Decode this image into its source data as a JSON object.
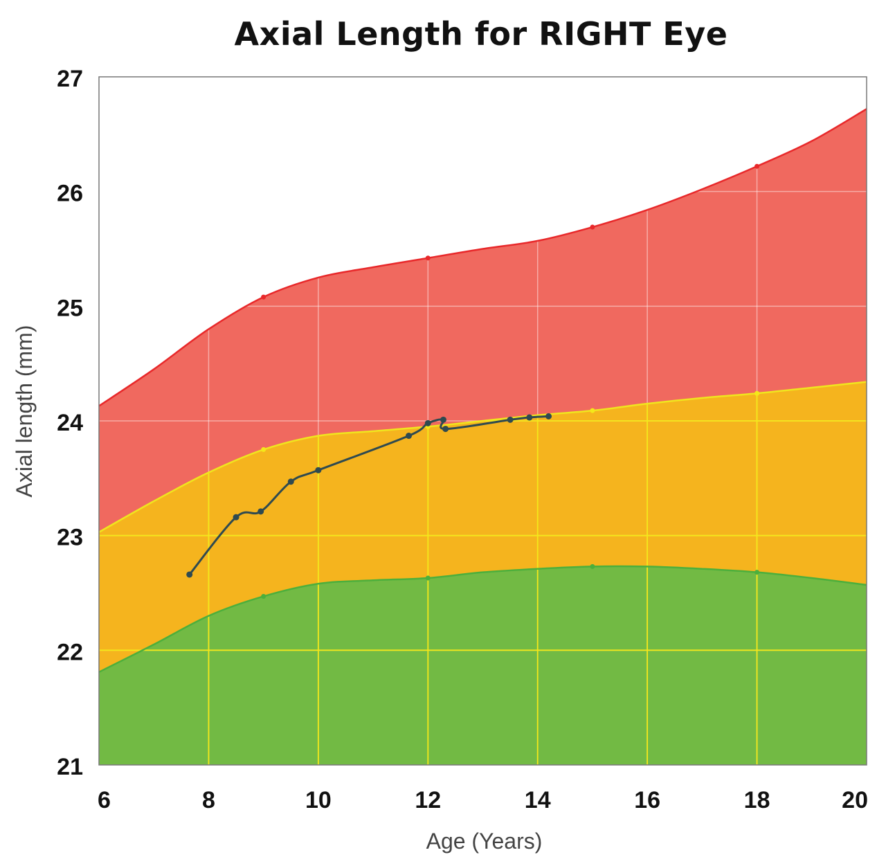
{
  "chart_data": {
    "type": "area",
    "title": "Axial Length for RIGHT Eye",
    "xlabel": "Age (Years)",
    "ylabel": "Axial length (mm)",
    "xlim": [
      6,
      20
    ],
    "ylim": [
      21,
      27
    ],
    "x_ticks": [
      6,
      8,
      10,
      12,
      14,
      16,
      18,
      20
    ],
    "y_ticks": [
      21,
      22,
      23,
      24,
      25,
      26,
      27
    ],
    "grid": true,
    "bands": [
      {
        "color": "#f0695f",
        "line_color": "#e8282a",
        "upper": [
          [
            6,
            24.13
          ],
          [
            7,
            24.45
          ],
          [
            8,
            24.8
          ],
          [
            9,
            25.08
          ],
          [
            10,
            25.25
          ],
          [
            11,
            25.34
          ],
          [
            12,
            25.42
          ],
          [
            13,
            25.5
          ],
          [
            14,
            25.57
          ],
          [
            15,
            25.69
          ],
          [
            16,
            25.84
          ],
          [
            17,
            26.02
          ],
          [
            18,
            26.22
          ],
          [
            19,
            26.44
          ],
          [
            20,
            26.72
          ]
        ]
      },
      {
        "color": "#f5b41e",
        "line_color": "#f0e61e",
        "upper": [
          [
            6,
            23.03
          ],
          [
            7,
            23.3
          ],
          [
            8,
            23.55
          ],
          [
            9,
            23.75
          ],
          [
            10,
            23.87
          ],
          [
            11,
            23.91
          ],
          [
            12,
            23.95
          ],
          [
            13,
            24.0
          ],
          [
            14,
            24.05
          ],
          [
            15,
            24.09
          ],
          [
            16,
            24.15
          ],
          [
            17,
            24.2
          ],
          [
            18,
            24.24
          ],
          [
            19,
            24.29
          ],
          [
            20,
            24.34
          ]
        ]
      },
      {
        "color": "#72ba44",
        "line_color": "#4caf3c",
        "upper": [
          [
            6,
            21.81
          ],
          [
            7,
            22.05
          ],
          [
            8,
            22.3
          ],
          [
            9,
            22.47
          ],
          [
            10,
            22.58
          ],
          [
            11,
            22.61
          ],
          [
            12,
            22.63
          ],
          [
            13,
            22.68
          ],
          [
            14,
            22.71
          ],
          [
            15,
            22.73
          ],
          [
            16,
            22.73
          ],
          [
            17,
            22.71
          ],
          [
            18,
            22.68
          ],
          [
            19,
            22.63
          ],
          [
            20,
            22.57
          ]
        ]
      }
    ],
    "band_markers": {
      "red": [
        [
          9,
          25.08
        ],
        [
          12,
          25.42
        ],
        [
          15,
          25.69
        ],
        [
          18,
          26.22
        ]
      ],
      "yellow": [
        [
          9,
          23.75
        ],
        [
          12,
          23.95
        ],
        [
          15,
          24.09
        ],
        [
          18,
          24.24
        ]
      ],
      "green": [
        [
          9,
          22.47
        ],
        [
          12,
          22.63
        ],
        [
          15,
          22.73
        ],
        [
          18,
          22.68
        ]
      ]
    },
    "series": [
      {
        "color": "#2f4a50",
        "points": [
          [
            7.65,
            22.66
          ],
          [
            8.5,
            23.16
          ],
          [
            8.95,
            23.21
          ],
          [
            9.5,
            23.47
          ],
          [
            10.0,
            23.57
          ],
          [
            11.65,
            23.87
          ],
          [
            12.0,
            23.98
          ],
          [
            12.28,
            24.01
          ],
          [
            12.32,
            23.93
          ],
          [
            13.5,
            24.01
          ],
          [
            13.85,
            24.03
          ],
          [
            14.2,
            24.04
          ]
        ]
      }
    ]
  }
}
